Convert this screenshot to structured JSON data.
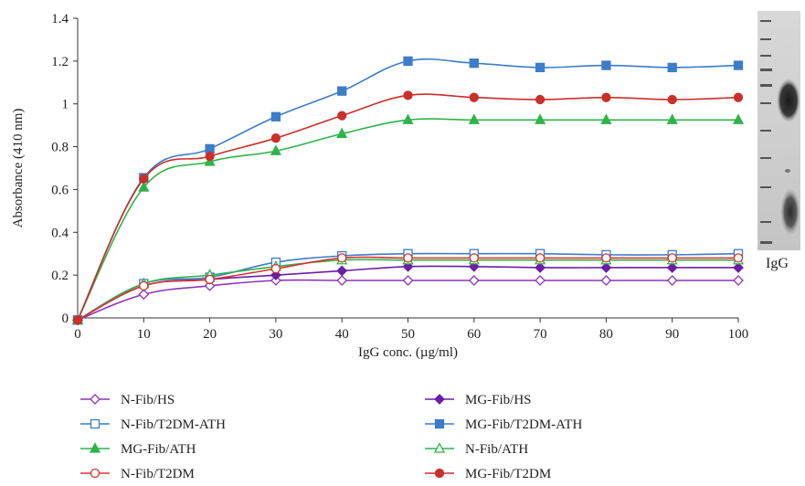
{
  "chart_data": {
    "type": "line",
    "title": "",
    "xlabel": "IgG conc. (µg/ml)",
    "ylabel": "Absorbance (410 nm)",
    "xlim": [
      0,
      100
    ],
    "ylim": [
      0,
      1.4
    ],
    "x_ticks": [
      "0",
      "10",
      "20",
      "30",
      "40",
      "50",
      "60",
      "70",
      "80",
      "90",
      "100"
    ],
    "y_ticks": [
      "0",
      "0.2",
      "0.4",
      "0.6",
      "0.8",
      "1",
      "1.2",
      "1.4"
    ],
    "grid": false,
    "legend_position": "bottom",
    "x": [
      0,
      10,
      20,
      30,
      40,
      50,
      60,
      70,
      80,
      90,
      100
    ],
    "series": [
      {
        "name": "N-Fib/HS",
        "marker": "diamond-open",
        "color": "#8e35b8",
        "values": [
          -0.01,
          0.11,
          0.15,
          0.175,
          0.175,
          0.175,
          0.175,
          0.175,
          0.175,
          0.175,
          0.175
        ]
      },
      {
        "name": "MG-Fib/HS",
        "marker": "diamond-filled",
        "color": "#6a1fa6",
        "values": [
          -0.01,
          0.15,
          0.18,
          0.2,
          0.22,
          0.24,
          0.24,
          0.235,
          0.235,
          0.235,
          0.235
        ]
      },
      {
        "name": "N-Fib/T2DM-ATH",
        "marker": "square-open",
        "color": "#3d7cc9",
        "values": [
          -0.01,
          0.16,
          0.19,
          0.26,
          0.29,
          0.3,
          0.3,
          0.3,
          0.295,
          0.295,
          0.3
        ]
      },
      {
        "name": "MG-Fib/T2DM-ATH",
        "marker": "square-filled",
        "color": "#3d7cc9",
        "values": [
          -0.01,
          0.655,
          0.79,
          0.94,
          1.06,
          1.2,
          1.19,
          1.17,
          1.18,
          1.17,
          1.18
        ]
      },
      {
        "name": "MG-Fib/ATH",
        "marker": "triangle-filled",
        "color": "#2fb34a",
        "values": [
          -0.01,
          0.61,
          0.73,
          0.78,
          0.86,
          0.925,
          0.925,
          0.925,
          0.925,
          0.925,
          0.925
        ]
      },
      {
        "name": "N-Fib/ATH",
        "marker": "triangle-open",
        "color": "#2fb34a",
        "values": [
          -0.01,
          0.16,
          0.2,
          0.24,
          0.27,
          0.27,
          0.27,
          0.27,
          0.27,
          0.27,
          0.27
        ]
      },
      {
        "name": "N-Fib/T2DM",
        "marker": "circle-open",
        "color": "#d9342b",
        "values": [
          -0.01,
          0.15,
          0.18,
          0.23,
          0.28,
          0.28,
          0.28,
          0.28,
          0.28,
          0.28,
          0.28
        ]
      },
      {
        "name": "MG-Fib/T2DM",
        "marker": "circle-filled",
        "color": "#c9302a",
        "values": [
          -0.01,
          0.65,
          0.755,
          0.84,
          0.945,
          1.04,
          1.03,
          1.02,
          1.03,
          1.02,
          1.03
        ]
      }
    ]
  },
  "blot": {
    "label": "IgG"
  }
}
